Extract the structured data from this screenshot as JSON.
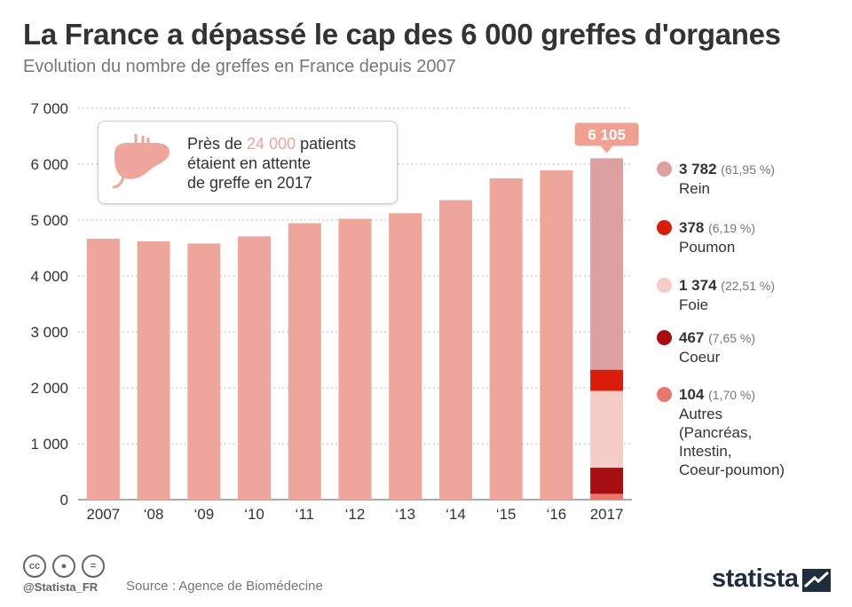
{
  "title": "La France a dépassé le cap des 6 000 greffes d'organes",
  "subtitle": "Evolution du nombre de greffes en France depuis 2007",
  "annotation": {
    "prefix": "Près de ",
    "highlight": "24 000",
    "suffix_line1": " patients",
    "line2": "étaient en attente",
    "line3": "de greffe en 2017",
    "icon": "liver-icon"
  },
  "chart_data": {
    "type": "bar",
    "title": "La France a dépassé le cap des 6 000 greffes d'organes",
    "xlabel": "",
    "ylabel": "",
    "ylim": [
      0,
      7000
    ],
    "yticks": [
      0,
      1000,
      2000,
      3000,
      4000,
      5000,
      6000,
      7000
    ],
    "ytick_labels": [
      "0",
      "1 000",
      "2 000",
      "3 000",
      "4 000",
      "5 000",
      "6 000",
      "7 000"
    ],
    "categories": [
      "2007",
      "‘08",
      "‘09",
      "‘10",
      "‘11",
      "‘12",
      "‘13",
      "‘14",
      "‘15",
      "‘16",
      "2017"
    ],
    "values": [
      4666,
      4620,
      4580,
      4708,
      4945,
      5023,
      5123,
      5357,
      5746,
      5891,
      6105
    ],
    "callout_label": "6 105",
    "stacked_2017": [
      {
        "name": "Autres",
        "value": 104,
        "color": "#e8776d"
      },
      {
        "name": "Coeur",
        "value": 467,
        "color": "#a60e12"
      },
      {
        "name": "Foie",
        "value": 1374,
        "color": "#f6ccc9"
      },
      {
        "name": "Poumon",
        "value": 378,
        "color": "#d81e0a"
      },
      {
        "name": "Rein",
        "value": 3782,
        "color": "#dca0a0"
      }
    ],
    "bar_color": "#eea59c"
  },
  "legend": [
    {
      "value": "3 782",
      "pct": "(61,95 %)",
      "label": "Rein",
      "color": "#dca0a0"
    },
    {
      "value": "378",
      "pct": "(6,19 %)",
      "label": "Poumon",
      "color": "#d81e0a"
    },
    {
      "value": "1 374",
      "pct": "(22,51 %)",
      "label": "Foie",
      "color": "#f6ccc9"
    },
    {
      "value": "467",
      "pct": "(7,65 %)",
      "label": "Coeur",
      "color": "#a60e12"
    },
    {
      "value": "104",
      "pct": "(1,70 %)",
      "label": "Autres",
      "label_extra": [
        "(Pancréas,",
        "Intestin,",
        "Coeur-poumon)"
      ],
      "color": "#e8776d"
    }
  ],
  "footer": {
    "handle": "@Statista_FR",
    "source": "Source : Agence de Biomédecine",
    "logo": "statista",
    "cc_icons": [
      "cc",
      "by",
      "="
    ]
  },
  "colors": {
    "accent": "#eea59c",
    "title": "#333333",
    "callout": "#f0a090"
  }
}
